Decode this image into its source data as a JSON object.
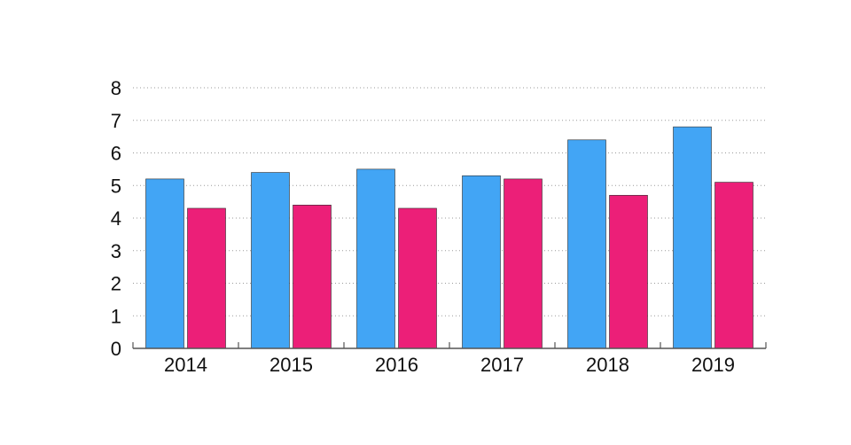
{
  "chart_data": {
    "type": "bar",
    "categories": [
      "2014",
      "2015",
      "2016",
      "2017",
      "2018",
      "2019"
    ],
    "series": [
      {
        "values": [
          5.2,
          5.4,
          5.5,
          5.3,
          6.4,
          6.8
        ],
        "color": "#42A5F5"
      },
      {
        "values": [
          4.3,
          4.4,
          4.3,
          5.2,
          4.7,
          5.1
        ],
        "color": "#EC1F78"
      }
    ],
    "yticks": [
      "0",
      "1",
      "2",
      "3",
      "4",
      "5",
      "6",
      "7",
      "8"
    ],
    "ylim": [
      0,
      8
    ],
    "grid": "horizontal dotted",
    "legend": "none",
    "title": "",
    "xlabel": "",
    "ylabel": ""
  }
}
